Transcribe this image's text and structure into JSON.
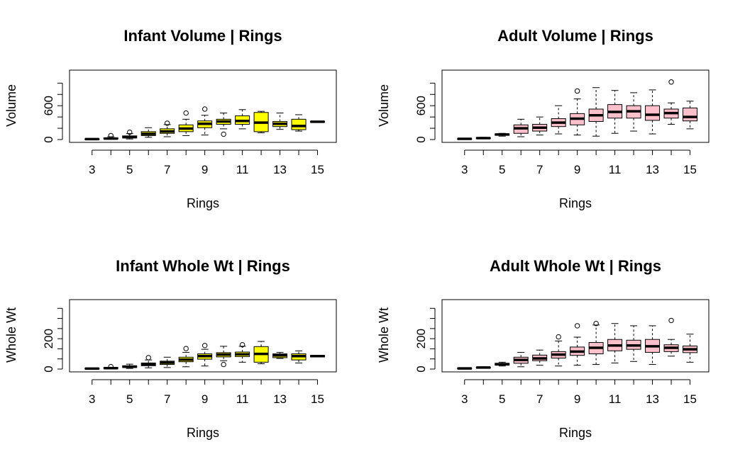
{
  "chart_data": [
    {
      "type": "boxplot",
      "title": "Infant Volume | Rings",
      "xlabel": "Rings",
      "ylabel": "Volume",
      "box_color": "#FFFF00",
      "ylim": [
        0,
        1130
      ],
      "yticks": [
        0,
        600
      ],
      "xlim": [
        1.8,
        16.0
      ],
      "xticks": [
        3,
        5,
        7,
        9,
        11,
        13,
        15
      ],
      "boxes": [
        {
          "x": 3,
          "lo": 2,
          "q1": 5,
          "med": 8,
          "q3": 12,
          "hi": 18,
          "out": []
        },
        {
          "x": 4,
          "lo": 5,
          "q1": 12,
          "med": 18,
          "q3": 28,
          "hi": 50,
          "out": [
            70
          ]
        },
        {
          "x": 5,
          "lo": 10,
          "q1": 28,
          "med": 42,
          "q3": 65,
          "hi": 105,
          "out": [
            130
          ]
        },
        {
          "x": 6,
          "lo": 40,
          "q1": 70,
          "med": 100,
          "q3": 140,
          "hi": 210,
          "out": []
        },
        {
          "x": 7,
          "lo": 50,
          "q1": 110,
          "med": 145,
          "q3": 190,
          "hi": 265,
          "out": [
            290
          ]
        },
        {
          "x": 8,
          "lo": 70,
          "q1": 140,
          "med": 195,
          "q3": 260,
          "hi": 360,
          "out": [
            470
          ]
        },
        {
          "x": 9,
          "lo": 80,
          "q1": 210,
          "med": 280,
          "q3": 330,
          "hi": 430,
          "out": [
            540
          ]
        },
        {
          "x": 10,
          "lo": 190,
          "q1": 270,
          "med": 320,
          "q3": 360,
          "hi": 470,
          "out": [
            95
          ]
        },
        {
          "x": 11,
          "lo": 190,
          "q1": 270,
          "med": 330,
          "q3": 420,
          "hi": 530,
          "out": []
        },
        {
          "x": 12,
          "lo": 120,
          "q1": 140,
          "med": 300,
          "q3": 480,
          "hi": 500,
          "out": []
        },
        {
          "x": 13,
          "lo": 180,
          "q1": 230,
          "med": 280,
          "q3": 320,
          "hi": 470,
          "out": []
        },
        {
          "x": 14,
          "lo": 150,
          "q1": 175,
          "med": 240,
          "q3": 360,
          "hi": 440,
          "out": []
        },
        {
          "x": 15,
          "lo": 310,
          "q1": 310,
          "med": 315,
          "q3": 320,
          "hi": 320,
          "out": []
        }
      ]
    },
    {
      "type": "boxplot",
      "title": "Adult Volume | Rings",
      "xlabel": "Rings",
      "ylabel": "Volume",
      "box_color": "#FFC0CB",
      "ylim": [
        0,
        1130
      ],
      "yticks": [
        0,
        600
      ],
      "xlim": [
        1.8,
        16.0
      ],
      "xticks": [
        3,
        5,
        7,
        9,
        11,
        13,
        15
      ],
      "boxes": [
        {
          "x": 3,
          "lo": 5,
          "q1": 8,
          "med": 12,
          "q3": 15,
          "hi": 20,
          "out": []
        },
        {
          "x": 4,
          "lo": 15,
          "q1": 20,
          "med": 25,
          "q3": 32,
          "hi": 40,
          "out": []
        },
        {
          "x": 5,
          "lo": 60,
          "q1": 75,
          "med": 90,
          "q3": 100,
          "hi": 110,
          "out": []
        },
        {
          "x": 6,
          "lo": 50,
          "q1": 110,
          "med": 200,
          "q3": 260,
          "hi": 360,
          "out": []
        },
        {
          "x": 7,
          "lo": 80,
          "q1": 150,
          "med": 210,
          "q3": 270,
          "hi": 400,
          "out": []
        },
        {
          "x": 8,
          "lo": 100,
          "q1": 230,
          "med": 300,
          "q3": 370,
          "hi": 600,
          "out": []
        },
        {
          "x": 9,
          "lo": 80,
          "q1": 260,
          "med": 370,
          "q3": 460,
          "hi": 720,
          "out": [
            860
          ]
        },
        {
          "x": 10,
          "lo": 60,
          "q1": 320,
          "med": 430,
          "q3": 540,
          "hi": 920,
          "out": []
        },
        {
          "x": 11,
          "lo": 110,
          "q1": 380,
          "med": 490,
          "q3": 620,
          "hi": 870,
          "out": []
        },
        {
          "x": 12,
          "lo": 150,
          "q1": 380,
          "med": 500,
          "q3": 600,
          "hi": 830,
          "out": []
        },
        {
          "x": 13,
          "lo": 100,
          "q1": 340,
          "med": 440,
          "q3": 600,
          "hi": 880,
          "out": []
        },
        {
          "x": 14,
          "lo": 270,
          "q1": 380,
          "med": 470,
          "q3": 540,
          "hi": 650,
          "out": [
            1020
          ]
        },
        {
          "x": 15,
          "lo": 190,
          "q1": 330,
          "med": 400,
          "q3": 560,
          "hi": 680,
          "out": []
        }
      ]
    },
    {
      "type": "boxplot",
      "title": "Infant Whole Wt | Rings",
      "xlabel": "Rings",
      "ylabel": "Whole Wt",
      "box_color": "#FFFF00",
      "ylim": [
        0,
        420
      ],
      "yticks": [
        0,
        200
      ],
      "xlim": [
        1.8,
        16.0
      ],
      "xticks": [
        3,
        5,
        7,
        9,
        11,
        13,
        15
      ],
      "boxes": [
        {
          "x": 3,
          "lo": 1,
          "q1": 2,
          "med": 3,
          "q3": 5,
          "hi": 7,
          "out": []
        },
        {
          "x": 4,
          "lo": 2,
          "q1": 4,
          "med": 6,
          "q3": 9,
          "hi": 12,
          "out": [
            16
          ]
        },
        {
          "x": 5,
          "lo": 4,
          "q1": 10,
          "med": 15,
          "q3": 22,
          "hi": 32,
          "out": []
        },
        {
          "x": 6,
          "lo": 8,
          "q1": 22,
          "med": 30,
          "q3": 40,
          "hi": 60,
          "out": [
            75
          ]
        },
        {
          "x": 7,
          "lo": 10,
          "q1": 30,
          "med": 42,
          "q3": 52,
          "hi": 78,
          "out": []
        },
        {
          "x": 8,
          "lo": 15,
          "q1": 48,
          "med": 62,
          "q3": 78,
          "hi": 110,
          "out": [
            135
          ]
        },
        {
          "x": 9,
          "lo": 20,
          "q1": 65,
          "med": 85,
          "q3": 100,
          "hi": 130,
          "out": [
            155
          ]
        },
        {
          "x": 10,
          "lo": 55,
          "q1": 80,
          "med": 95,
          "q3": 108,
          "hi": 150,
          "out": [
            30
          ]
        },
        {
          "x": 11,
          "lo": 45,
          "q1": 82,
          "med": 97,
          "q3": 112,
          "hi": 150,
          "out": [
            160
          ]
        },
        {
          "x": 12,
          "lo": 35,
          "q1": 45,
          "med": 100,
          "q3": 148,
          "hi": 182,
          "out": []
        },
        {
          "x": 13,
          "lo": 70,
          "q1": 75,
          "med": 90,
          "q3": 100,
          "hi": 110,
          "out": []
        },
        {
          "x": 14,
          "lo": 40,
          "q1": 60,
          "med": 85,
          "q3": 100,
          "hi": 120,
          "out": []
        },
        {
          "x": 15,
          "lo": 80,
          "q1": 80,
          "med": 85,
          "q3": 90,
          "hi": 90,
          "out": []
        }
      ]
    },
    {
      "type": "boxplot",
      "title": "Adult Whole Wt | Rings",
      "xlabel": "Rings",
      "ylabel": "Whole Wt",
      "box_color": "#FFC0CB",
      "ylim": [
        0,
        420
      ],
      "yticks": [
        0,
        200
      ],
      "xlim": [
        1.8,
        16.0
      ],
      "xticks": [
        3,
        5,
        7,
        9,
        11,
        13,
        15
      ],
      "boxes": [
        {
          "x": 3,
          "lo": 2,
          "q1": 3,
          "med": 4,
          "q3": 6,
          "hi": 8,
          "out": []
        },
        {
          "x": 4,
          "lo": 6,
          "q1": 8,
          "med": 10,
          "q3": 12,
          "hi": 15,
          "out": []
        },
        {
          "x": 5,
          "lo": 20,
          "q1": 25,
          "med": 32,
          "q3": 38,
          "hi": 45,
          "out": []
        },
        {
          "x": 6,
          "lo": 15,
          "q1": 38,
          "med": 60,
          "q3": 78,
          "hi": 110,
          "out": []
        },
        {
          "x": 7,
          "lo": 25,
          "q1": 55,
          "med": 70,
          "q3": 92,
          "hi": 125,
          "out": []
        },
        {
          "x": 8,
          "lo": 20,
          "q1": 72,
          "med": 95,
          "q3": 115,
          "hi": 185,
          "out": [
            212
          ]
        },
        {
          "x": 9,
          "lo": 25,
          "q1": 90,
          "med": 115,
          "q3": 145,
          "hi": 210,
          "out": [
            285
          ]
        },
        {
          "x": 10,
          "lo": 30,
          "q1": 100,
          "med": 140,
          "q3": 175,
          "hi": 290,
          "out": [
            300
          ]
        },
        {
          "x": 11,
          "lo": 40,
          "q1": 120,
          "med": 155,
          "q3": 195,
          "hi": 300,
          "out": []
        },
        {
          "x": 12,
          "lo": 50,
          "q1": 130,
          "med": 155,
          "q3": 190,
          "hi": 285,
          "out": []
        },
        {
          "x": 13,
          "lo": 30,
          "q1": 110,
          "med": 150,
          "q3": 195,
          "hi": 285,
          "out": []
        },
        {
          "x": 14,
          "lo": 85,
          "q1": 115,
          "med": 140,
          "q3": 160,
          "hi": 195,
          "out": [
            320
          ]
        },
        {
          "x": 15,
          "lo": 45,
          "q1": 108,
          "med": 130,
          "q3": 152,
          "hi": 230,
          "out": []
        }
      ]
    }
  ]
}
